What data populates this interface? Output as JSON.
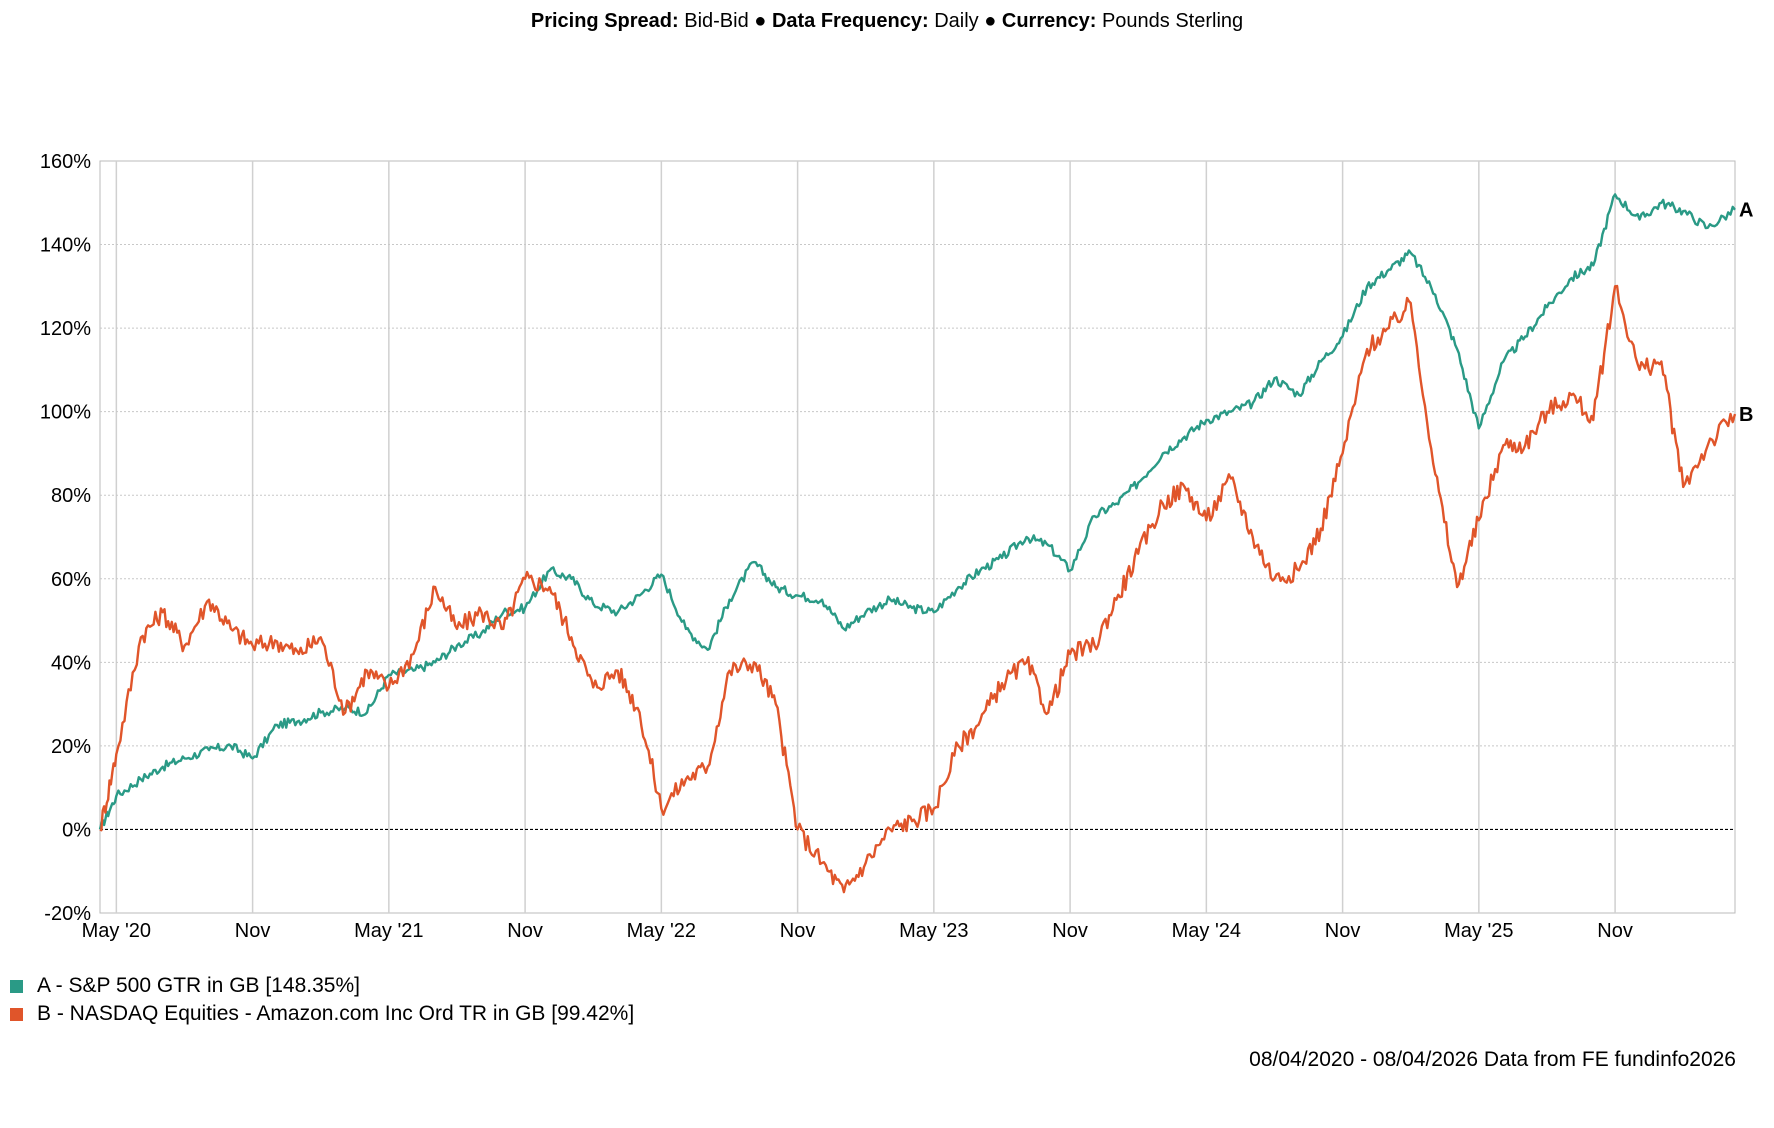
{
  "header": {
    "pricing_spread_label": "Pricing Spread:",
    "pricing_spread_value": "Bid-Bid",
    "sep1": "●",
    "frequency_label": "Data Frequency:",
    "frequency_value": "Daily",
    "sep2": "●",
    "currency_label": "Currency:",
    "currency_value": "Pounds Sterling"
  },
  "footer": {
    "text": "08/04/2020 - 08/04/2026 Data from FE fundinfo2026"
  },
  "chart_data": {
    "type": "line",
    "title": "",
    "xlabel": "",
    "ylabel": "",
    "ylim": [
      -20,
      160
    ],
    "xlim": [
      2020.27,
      2026.27
    ],
    "yticks": [
      -20,
      0,
      20,
      40,
      60,
      80,
      100,
      120,
      140,
      160
    ],
    "ytick_labels": [
      "-20%",
      "0%",
      "20%",
      "40%",
      "60%",
      "80%",
      "100%",
      "120%",
      "140%",
      "160%"
    ],
    "xticks": [
      2020.33,
      2020.83,
      2021.33,
      2021.83,
      2022.33,
      2022.83,
      2023.33,
      2023.83,
      2024.33,
      2024.83,
      2025.33,
      2025.83
    ],
    "xtick_labels": [
      "May '20",
      "Nov",
      "May '21",
      "Nov",
      "May '22",
      "Nov",
      "May '23",
      "Nov",
      "May '24",
      "Nov",
      "May '25",
      "Nov"
    ],
    "grid": true,
    "zero_line": true,
    "series": [
      {
        "name": "A - S&P 500 GTR in GB [148.35%]",
        "end_label": "A",
        "color": "#2a9a86",
        "x": [
          2020.27,
          2020.33,
          2020.42,
          2020.5,
          2020.58,
          2020.67,
          2020.75,
          2020.83,
          2020.92,
          2021.0,
          2021.08,
          2021.17,
          2021.25,
          2021.33,
          2021.42,
          2021.5,
          2021.58,
          2021.67,
          2021.75,
          2021.83,
          2021.92,
          2022.0,
          2022.08,
          2022.17,
          2022.25,
          2022.33,
          2022.42,
          2022.5,
          2022.58,
          2022.67,
          2022.75,
          2022.83,
          2022.92,
          2023.0,
          2023.08,
          2023.17,
          2023.25,
          2023.33,
          2023.42,
          2023.5,
          2023.58,
          2023.67,
          2023.75,
          2023.83,
          2023.92,
          2024.0,
          2024.08,
          2024.17,
          2024.25,
          2024.33,
          2024.42,
          2024.5,
          2024.58,
          2024.67,
          2024.75,
          2024.83,
          2024.92,
          2025.0,
          2025.08,
          2025.17,
          2025.25,
          2025.33,
          2025.42,
          2025.5,
          2025.58,
          2025.67,
          2025.75,
          2025.83,
          2025.92,
          2026.0,
          2026.08,
          2026.17,
          2026.27
        ],
        "values": [
          0,
          8,
          12,
          15,
          17,
          19,
          20,
          17,
          25,
          26,
          28,
          29,
          28,
          37,
          38,
          40,
          44,
          47,
          52,
          53,
          62,
          60,
          54,
          52,
          56,
          61,
          48,
          43,
          55,
          64,
          58,
          56,
          55,
          48,
          52,
          55,
          53,
          52,
          58,
          62,
          65,
          70,
          68,
          62,
          75,
          78,
          83,
          90,
          94,
          98,
          100,
          102,
          108,
          104,
          112,
          118,
          130,
          134,
          138,
          128,
          115,
          96,
          112,
          118,
          125,
          132,
          135,
          152,
          146,
          150,
          148,
          144,
          148.35
        ]
      },
      {
        "name": "B - NASDAQ Equities - Amazon.com Inc Ord TR in GB [99.42%]",
        "end_label": "B",
        "color": "#e0552a",
        "x": [
          2020.27,
          2020.33,
          2020.42,
          2020.5,
          2020.58,
          2020.67,
          2020.75,
          2020.83,
          2020.92,
          2021.0,
          2021.08,
          2021.17,
          2021.25,
          2021.33,
          2021.42,
          2021.5,
          2021.58,
          2021.67,
          2021.75,
          2021.83,
          2021.92,
          2022.0,
          2022.08,
          2022.17,
          2022.25,
          2022.33,
          2022.42,
          2022.5,
          2022.58,
          2022.67,
          2022.75,
          2022.83,
          2022.92,
          2023.0,
          2023.08,
          2023.17,
          2023.25,
          2023.33,
          2023.42,
          2023.5,
          2023.58,
          2023.67,
          2023.75,
          2023.83,
          2023.92,
          2024.0,
          2024.08,
          2024.17,
          2024.25,
          2024.33,
          2024.42,
          2024.5,
          2024.58,
          2024.67,
          2024.75,
          2024.83,
          2024.92,
          2025.0,
          2025.08,
          2025.17,
          2025.25,
          2025.33,
          2025.42,
          2025.5,
          2025.58,
          2025.67,
          2025.75,
          2025.83,
          2025.92,
          2026.0,
          2026.08,
          2026.17,
          2026.27
        ],
        "values": [
          0,
          18,
          46,
          52,
          44,
          55,
          48,
          44,
          45,
          42,
          46,
          28,
          38,
          34,
          42,
          58,
          48,
          52,
          48,
          60,
          58,
          46,
          34,
          38,
          28,
          5,
          12,
          15,
          38,
          40,
          30,
          0,
          -8,
          -15,
          -8,
          0,
          2,
          5,
          20,
          26,
          35,
          40,
          28,
          42,
          44,
          55,
          66,
          78,
          82,
          74,
          84,
          70,
          60,
          62,
          72,
          90,
          115,
          120,
          126,
          85,
          58,
          74,
          92,
          92,
          100,
          104,
          98,
          130,
          110,
          112,
          82,
          92,
          99.42
        ]
      }
    ]
  }
}
